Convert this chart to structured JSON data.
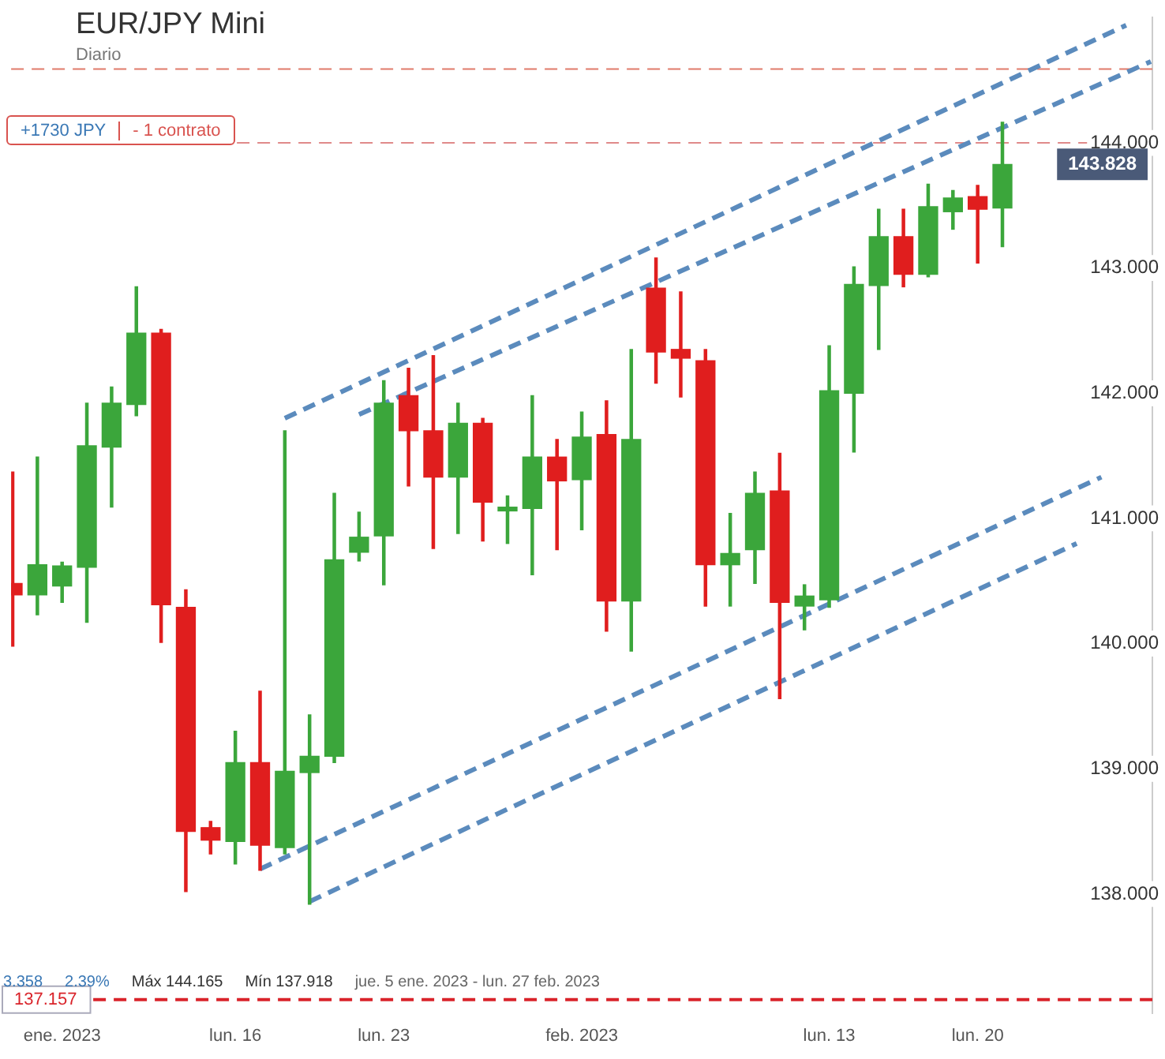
{
  "chart_data": {
    "type": "candlestick",
    "title": "EUR/JPY Mini",
    "subtitle": "Diario",
    "categories": [
      null,
      null,
      "ene. 2023",
      null,
      null,
      null,
      null,
      null,
      null,
      "lun. 16",
      null,
      null,
      null,
      null,
      null,
      "lun. 23",
      null,
      null,
      null,
      null,
      null,
      null,
      null,
      "feb. 2023",
      null,
      null,
      null,
      null,
      null,
      null,
      null,
      null,
      null,
      "lun. 13",
      null,
      null,
      null,
      null,
      null,
      "lun. 20",
      null,
      null,
      null,
      null,
      null,
      null,
      null
    ],
    "ohlc": [
      [
        140.48,
        141.37,
        139.98,
        140.39
      ],
      [
        140.39,
        141.49,
        140.23,
        140.63
      ],
      [
        140.46,
        140.65,
        140.33,
        140.62
      ],
      [
        140.61,
        141.92,
        140.17,
        141.58
      ],
      [
        141.57,
        142.05,
        141.09,
        141.92
      ],
      [
        141.91,
        142.85,
        141.82,
        142.48
      ],
      [
        142.48,
        142.51,
        140.01,
        140.31
      ],
      [
        140.29,
        140.43,
        138.02,
        138.5
      ],
      [
        138.53,
        138.58,
        138.32,
        138.43
      ],
      [
        138.42,
        139.3,
        138.24,
        139.05
      ],
      [
        139.05,
        139.62,
        138.19,
        138.39
      ],
      [
        138.37,
        141.7,
        138.32,
        138.98
      ],
      [
        138.97,
        139.43,
        137.918,
        139.1
      ],
      [
        139.1,
        141.2,
        139.05,
        140.67
      ],
      [
        140.73,
        141.05,
        140.66,
        140.85
      ],
      [
        140.86,
        142.1,
        140.47,
        141.92
      ],
      [
        141.98,
        142.2,
        141.26,
        141.7
      ],
      [
        141.7,
        142.3,
        140.76,
        141.33
      ],
      [
        141.33,
        141.92,
        140.88,
        141.76
      ],
      [
        141.76,
        141.8,
        140.82,
        141.13
      ],
      [
        141.06,
        141.18,
        140.8,
        141.09
      ],
      [
        141.08,
        141.98,
        140.55,
        141.49
      ],
      [
        141.49,
        141.63,
        140.75,
        141.3
      ],
      [
        141.31,
        141.85,
        140.91,
        141.65
      ],
      [
        141.67,
        141.94,
        140.1,
        140.34
      ],
      [
        140.34,
        142.35,
        139.94,
        141.63
      ],
      [
        142.84,
        143.08,
        142.08,
        142.33
      ],
      [
        142.35,
        142.81,
        141.97,
        142.28
      ],
      [
        142.26,
        142.35,
        140.3,
        140.63
      ],
      [
        140.63,
        141.04,
        140.3,
        140.72
      ],
      [
        140.75,
        141.37,
        140.48,
        141.2
      ],
      [
        141.22,
        141.52,
        139.56,
        140.33
      ],
      [
        140.3,
        140.47,
        140.11,
        140.38
      ],
      [
        140.35,
        142.38,
        140.29,
        142.02
      ],
      [
        142.0,
        143.01,
        141.53,
        142.87
      ],
      [
        142.86,
        143.47,
        142.35,
        143.25
      ],
      [
        143.25,
        143.47,
        142.85,
        142.95
      ],
      [
        142.95,
        143.67,
        142.93,
        143.49
      ],
      [
        143.45,
        143.62,
        143.31,
        143.56
      ],
      [
        143.57,
        143.66,
        143.04,
        143.47
      ],
      [
        143.48,
        144.165,
        143.17,
        143.828
      ],
      null,
      null,
      null,
      null,
      null,
      null
    ],
    "colors": [
      "#e01e1e",
      "#3ba63b",
      "#3ba63b",
      "#3ba63b",
      "#3ba63b",
      "#3ba63b",
      "#e01e1e",
      "#e01e1e",
      "#e01e1e",
      "#3ba63b",
      "#e01e1e",
      "#3ba63b",
      "#3ba63b",
      "#3ba63b",
      "#3ba63b",
      "#3ba63b",
      "#e01e1e",
      "#e01e1e",
      "#3ba63b",
      "#e01e1e",
      "#3ba63b",
      "#3ba63b",
      "#e01e1e",
      "#3ba63b",
      "#e01e1e",
      "#3ba63b",
      "#e01e1e",
      "#e01e1e",
      "#e01e1e",
      "#3ba63b",
      "#3ba63b",
      "#e01e1e",
      "#3ba63b",
      "#3ba63b",
      "#3ba63b",
      "#3ba63b",
      "#e01e1e",
      "#3ba63b",
      "#3ba63b",
      "#e01e1e",
      "#3ba63b",
      null,
      null,
      null,
      null,
      null,
      null
    ],
    "series": [
      {
        "type": "line",
        "color": "#5b8bbd",
        "line_style": "dashed",
        "values": [
          null,
          null,
          null,
          null,
          null,
          null,
          null,
          null,
          null,
          null,
          null,
          141.8,
          null,
          null,
          null,
          null,
          null,
          null,
          null,
          null,
          null,
          null,
          null,
          null,
          null,
          null,
          null,
          null,
          null,
          null,
          null,
          null,
          null,
          null,
          null,
          null,
          null,
          null,
          null,
          null,
          null,
          null,
          null,
          null,
          null,
          144.94,
          null
        ]
      },
      {
        "type": "line",
        "color": "#5b8bbd",
        "line_style": "dashed",
        "values": [
          null,
          null,
          null,
          null,
          null,
          null,
          null,
          null,
          null,
          null,
          null,
          null,
          null,
          null,
          141.83,
          null,
          null,
          null,
          null,
          null,
          null,
          null,
          null,
          null,
          null,
          null,
          null,
          null,
          null,
          null,
          null,
          null,
          null,
          null,
          null,
          null,
          null,
          null,
          null,
          null,
          null,
          null,
          null,
          null,
          null,
          null,
          144.65
        ]
      },
      {
        "type": "line",
        "color": "#5b8bbd",
        "line_style": "dashed",
        "values": [
          null,
          null,
          null,
          null,
          null,
          null,
          null,
          null,
          null,
          null,
          138.2,
          null,
          null,
          null,
          null,
          null,
          null,
          null,
          null,
          null,
          null,
          null,
          null,
          null,
          null,
          null,
          null,
          null,
          null,
          null,
          null,
          null,
          null,
          null,
          null,
          null,
          null,
          null,
          null,
          null,
          null,
          null,
          null,
          null,
          141.33,
          null,
          null
        ]
      },
      {
        "type": "line",
        "color": "#5b8bbd",
        "line_style": "dashed",
        "values": [
          null,
          null,
          null,
          null,
          null,
          null,
          null,
          null,
          null,
          null,
          null,
          null,
          137.94,
          null,
          null,
          null,
          null,
          null,
          null,
          null,
          null,
          null,
          null,
          null,
          null,
          null,
          null,
          null,
          null,
          null,
          null,
          null,
          null,
          null,
          null,
          null,
          null,
          null,
          null,
          null,
          null,
          null,
          null,
          140.8,
          null,
          null,
          null
        ]
      }
    ],
    "ylim": [
      137.05,
      145.0
    ],
    "yticks": [
      {
        "value": 138,
        "label": "138.000"
      },
      {
        "value": 139,
        "label": "139.000"
      },
      {
        "value": 140,
        "label": "140.000"
      },
      {
        "value": 141,
        "label": "141.000"
      },
      {
        "value": 142,
        "label": "142.000"
      },
      {
        "value": 143,
        "label": "143.000"
      },
      {
        "value": 144,
        "label": "144.000"
      }
    ],
    "ref_lines": [
      {
        "axis": "y",
        "value": 144.59,
        "color": "#e07a6a",
        "line_style": "dashed"
      },
      {
        "axis": "y",
        "value": 144.0,
        "color": "#e08a8a",
        "line_style": "dashed"
      },
      {
        "axis": "y",
        "value": 137.157,
        "label": "137.157",
        "color": "#d9232a",
        "line_style": "dashed"
      }
    ],
    "annotations": [
      "+1730 JPY",
      "- 1 contrato",
      "3.358",
      "2.39%",
      "Máx 144.165",
      "Mín 137.918",
      "jue. 5 ene. 2023 - lun. 27 feb. 2023",
      "143.828"
    ],
    "grid": false,
    "legend": false
  }
}
